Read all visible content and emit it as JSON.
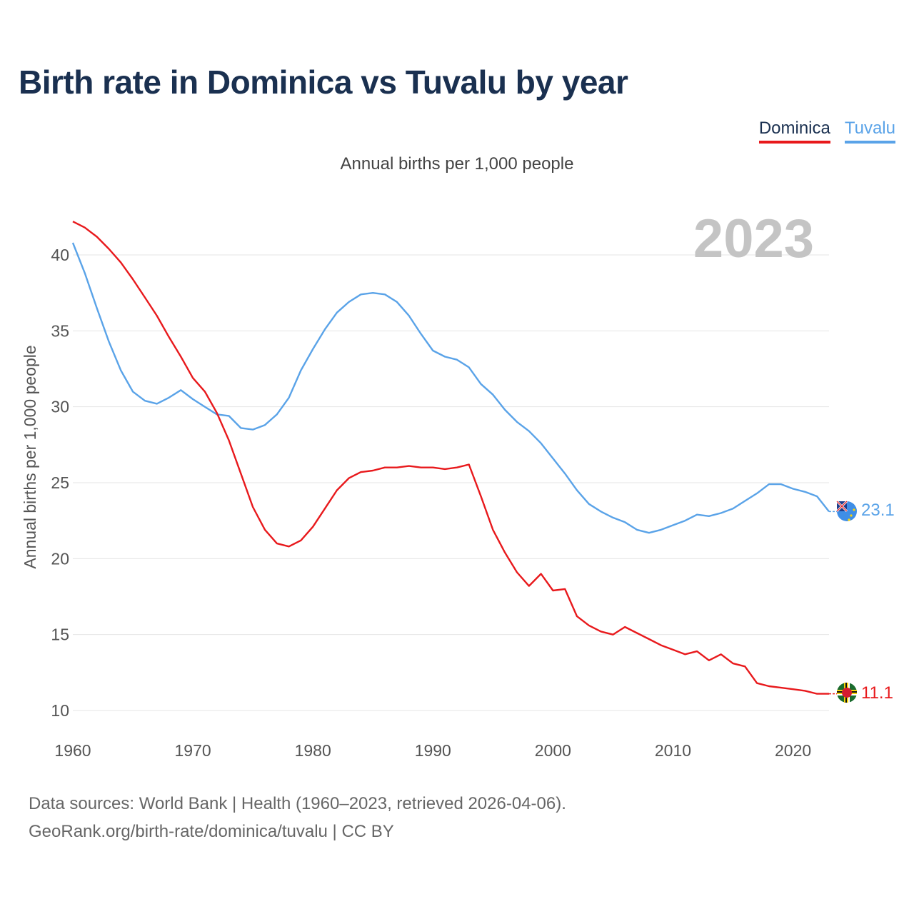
{
  "title": "Birth rate in Dominica vs Tuvalu by year",
  "subtitle": "Annual births per 1,000 people",
  "year_watermark": "2023",
  "legend": [
    {
      "label": "Dominica",
      "color": "#e8191c"
    },
    {
      "label": "Tuvalu",
      "color": "#5aa3e8"
    }
  ],
  "footer": {
    "line1": "Data sources: World Bank | Health (1960–2023, retrieved 2026-04-06).",
    "line2": "GeoRank.org/birth-rate/dominica/tuvalu | CC BY"
  },
  "chart_data": {
    "type": "line",
    "title": "Birth rate in Dominica vs Tuvalu by year",
    "ylabel": "Annual births per 1,000 people",
    "xlabel": "",
    "xlim": [
      1960,
      2023
    ],
    "ylim": [
      10,
      42
    ],
    "xticks": [
      1960,
      1970,
      1980,
      1990,
      2000,
      2010,
      2020
    ],
    "yticks": [
      10,
      15,
      20,
      25,
      30,
      35,
      40
    ],
    "grid": true,
    "legend_position": "top-right",
    "x": [
      1960,
      1961,
      1962,
      1963,
      1964,
      1965,
      1966,
      1967,
      1968,
      1969,
      1970,
      1971,
      1972,
      1973,
      1974,
      1975,
      1976,
      1977,
      1978,
      1979,
      1980,
      1981,
      1982,
      1983,
      1984,
      1985,
      1986,
      1987,
      1988,
      1989,
      1990,
      1991,
      1992,
      1993,
      1994,
      1995,
      1996,
      1997,
      1998,
      1999,
      2000,
      2001,
      2002,
      2003,
      2004,
      2005,
      2006,
      2007,
      2008,
      2009,
      2010,
      2011,
      2012,
      2013,
      2014,
      2015,
      2016,
      2017,
      2018,
      2019,
      2020,
      2021,
      2022,
      2023
    ],
    "series": [
      {
        "name": "Dominica",
        "color": "#e8191c",
        "end_label": "11.1",
        "values": [
          42.2,
          41.8,
          41.2,
          40.4,
          39.5,
          38.4,
          37.2,
          36.0,
          34.6,
          33.3,
          31.9,
          31.0,
          29.6,
          27.8,
          25.6,
          23.4,
          21.9,
          21.0,
          20.8,
          21.2,
          22.1,
          23.3,
          24.5,
          25.3,
          25.7,
          25.8,
          26.0,
          26.0,
          26.1,
          26.0,
          26.0,
          25.9,
          26.0,
          26.2,
          24.1,
          21.9,
          20.4,
          19.1,
          18.2,
          19.0,
          17.9,
          18.0,
          16.2,
          15.6,
          15.2,
          15.0,
          15.5,
          15.1,
          14.7,
          14.3,
          14.0,
          13.7,
          13.9,
          13.3,
          13.7,
          13.1,
          12.9,
          11.8,
          11.6,
          11.5,
          11.4,
          11.3,
          11.1,
          11.1
        ]
      },
      {
        "name": "Tuvalu",
        "color": "#5aa3e8",
        "end_label": "23.1",
        "values": [
          40.8,
          38.8,
          36.5,
          34.3,
          32.4,
          31.0,
          30.4,
          30.2,
          30.6,
          31.1,
          30.5,
          30.0,
          29.5,
          29.4,
          28.6,
          28.5,
          28.8,
          29.5,
          30.6,
          32.4,
          33.8,
          35.1,
          36.2,
          36.9,
          37.4,
          37.5,
          37.4,
          36.9,
          36.0,
          34.8,
          33.7,
          33.3,
          33.1,
          32.6,
          31.5,
          30.8,
          29.8,
          29.0,
          28.4,
          27.6,
          26.6,
          25.6,
          24.5,
          23.6,
          23.1,
          22.7,
          22.4,
          21.9,
          21.7,
          21.9,
          22.2,
          22.5,
          22.9,
          22.8,
          23.0,
          23.3,
          23.8,
          24.3,
          24.9,
          24.9,
          24.6,
          24.4,
          24.1,
          23.1
        ]
      }
    ]
  }
}
